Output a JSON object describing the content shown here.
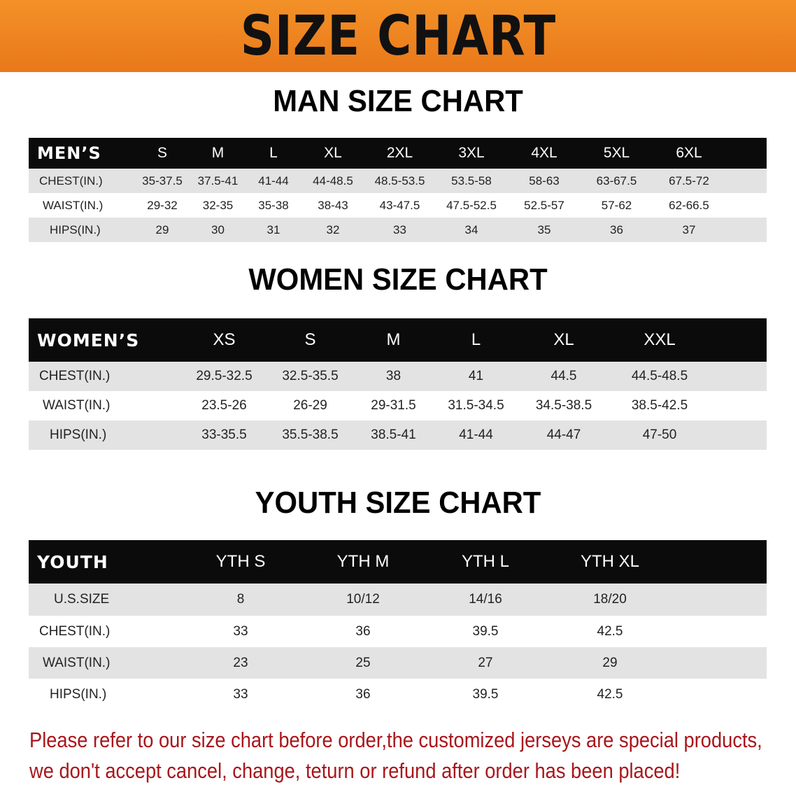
{
  "banner_title": "SIZE CHART",
  "footer_note": [
    "Please refer to our size chart before order,the customized jerseys are special products,",
    "we don't accept cancel, change, teturn or refund after order has been placed!"
  ],
  "colors": {
    "banner": "#ef8520",
    "header_row": "#0b0b0b",
    "stripe": "#e3e3e3",
    "note": "#a8161b"
  },
  "tables": [
    {
      "id": "men",
      "title": "MAN SIZE CHART",
      "header": [
        "MEN’S",
        "S",
        "M",
        "L",
        "XL",
        "2XL",
        "3XL",
        "4XL",
        "5XL",
        "6XL"
      ],
      "rows": [
        [
          "CHEST(IN.)",
          "35-37.5",
          "37.5-41",
          "41-44",
          "44-48.5",
          "48.5-53.5",
          "53.5-58",
          "58-63",
          "63-67.5",
          "67.5-72"
        ],
        [
          "WAIST(IN.)",
          "29-32",
          "32-35",
          "35-38",
          "38-43",
          "43-47.5",
          "47.5-52.5",
          "52.5-57",
          "57-62",
          "62-66.5"
        ],
        [
          "HIPS(IN.)",
          "29",
          "30",
          "31",
          "32",
          "33",
          "34",
          "35",
          "36",
          "37"
        ]
      ]
    },
    {
      "id": "women",
      "title": "WOMEN SIZE CHART",
      "header": [
        "WOMEN’S",
        "XS",
        "S",
        "M",
        "L",
        "XL",
        "XXL"
      ],
      "rows": [
        [
          "CHEST(IN.)",
          "29.5-32.5",
          "32.5-35.5",
          "38",
          "41",
          "44.5",
          "44.5-48.5"
        ],
        [
          "WAIST(IN.)",
          "23.5-26",
          "26-29",
          "29-31.5",
          "31.5-34.5",
          "34.5-38.5",
          "38.5-42.5"
        ],
        [
          "HIPS(IN.)",
          "33-35.5",
          "35.5-38.5",
          "38.5-41",
          "41-44",
          "44-47",
          "47-50"
        ]
      ]
    },
    {
      "id": "youth",
      "title": "YOUTH SIZE CHART",
      "header": [
        "YOUTH",
        "YTH S",
        "YTH M",
        "YTH L",
        "YTH XL"
      ],
      "rows": [
        [
          "U.S.SIZE",
          "8",
          "10/12",
          "14/16",
          "18/20"
        ],
        [
          "CHEST(IN.)",
          "33",
          "36",
          "39.5",
          "42.5"
        ],
        [
          "WAIST(IN.)",
          "23",
          "25",
          "27",
          "29"
        ],
        [
          "HIPS(IN.)",
          "33",
          "36",
          "39.5",
          "42.5"
        ]
      ]
    }
  ]
}
